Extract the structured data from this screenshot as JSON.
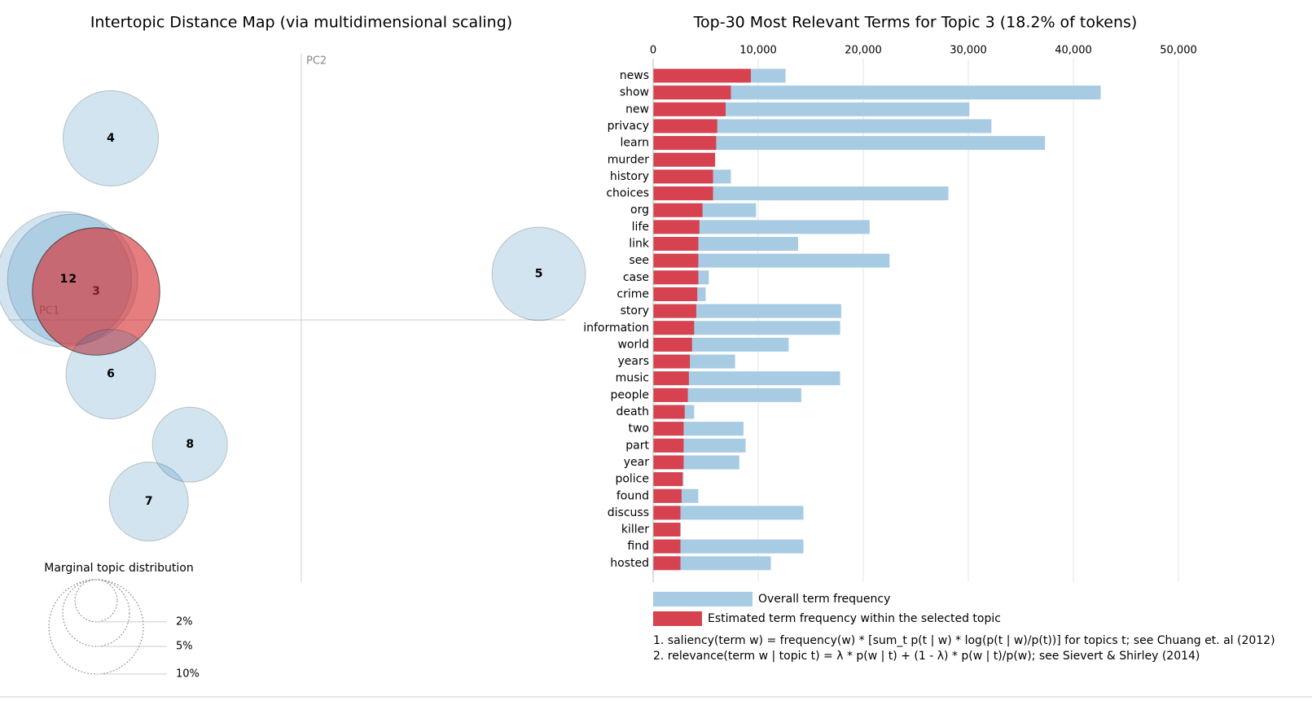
{
  "chart_data": [
    {
      "type": "scatter",
      "title": "Intertopic Distance Map (via multidimensional scaling)",
      "xlabel": "PC1",
      "ylabel": "PC2",
      "xlim": [
        -1,
        1
      ],
      "ylim": [
        -1,
        1
      ],
      "labels": [
        "1",
        "2",
        "3",
        "4",
        "5",
        "6",
        "7",
        "8"
      ],
      "x": [
        -0.81,
        -0.78,
        -0.7,
        -0.65,
        0.81,
        -0.65,
        -0.52,
        -0.38
      ],
      "y": [
        0.15,
        0.15,
        0.105,
        0.67,
        0.17,
        -0.2,
        -0.67,
        -0.46
      ],
      "sizes": [
        20.5,
        19.0,
        18.2,
        10.2,
        9.8,
        9.0,
        7.0,
        6.3
      ],
      "colors": [
        "#1f77b4",
        "#1f77b4",
        "#d62728",
        "#1f77b4",
        "#1f77b4",
        "#1f77b4",
        "#1f77b4",
        "#1f77b4"
      ],
      "size_legend": {
        "title": "Marginal topic distribution",
        "values": [
          2,
          5,
          10
        ],
        "value_labels": [
          "2%",
          "5%",
          "10%"
        ]
      }
    },
    {
      "type": "hbar",
      "title": "Top-30 Most Relevant Terms for Topic 3 (18.2% of tokens)",
      "categories": [
        "news",
        "show",
        "new",
        "privacy",
        "learn",
        "murder",
        "history",
        "choices",
        "org",
        "life",
        "link",
        "see",
        "case",
        "crime",
        "story",
        "information",
        "world",
        "years",
        "music",
        "people",
        "death",
        "two",
        "part",
        "year",
        "police",
        "found",
        "discuss",
        "killer",
        "find",
        "hosted"
      ],
      "series": [
        {
          "name": "Overall term frequency",
          "color": "#a6cbe3",
          "values": [
            12600,
            42600,
            30100,
            32200,
            37300,
            5900,
            7400,
            28100,
            9800,
            20600,
            13800,
            22500,
            5300,
            5000,
            17900,
            17800,
            12900,
            7800,
            17800,
            14100,
            3900,
            8600,
            8800,
            8200,
            2900,
            4300,
            14300,
            2600,
            14300,
            11200
          ]
        },
        {
          "name": "Estimated term frequency within the selected topic",
          "color": "#d6424f",
          "values": [
            9300,
            7400,
            6900,
            6100,
            6000,
            5900,
            5700,
            5700,
            4700,
            4400,
            4300,
            4300,
            4300,
            4200,
            4100,
            3900,
            3700,
            3500,
            3400,
            3300,
            3000,
            2900,
            2900,
            2900,
            2800,
            2700,
            2600,
            2600,
            2600,
            2600
          ]
        }
      ],
      "xlim": [
        0,
        50000
      ],
      "xticks": [
        0,
        {
          "value": 10000,
          "label": "10,000"
        },
        {
          "value": 20000,
          "label": "20,000"
        },
        {
          "value": 30000,
          "label": "30,000"
        },
        {
          "value": 40000,
          "label": "40,000"
        },
        {
          "value": 50000,
          "label": "50,000"
        }
      ],
      "grid": true,
      "notes": [
        "1. saliency(term w) = frequency(w) * [sum_t p(t | w) * log(p(t | w)/p(t))] for topics t; see Chuang et. al (2012)",
        "2. relevance(term w | topic t) = λ * p(w | t) + (1 - λ) * p(w | t)/p(w); see Sievert & Shirley (2014)"
      ]
    }
  ]
}
